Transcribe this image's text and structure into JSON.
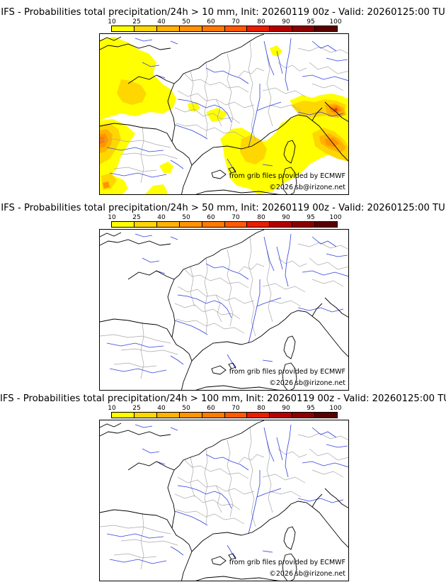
{
  "panels": [
    {
      "title": "IFS - Probabilities total precipitation/24h > 10 mm, Init: 20260119 00z - Valid: 20260125:00 TU",
      "has_precip": true
    },
    {
      "title": "IFS - Probabilities total precipitation/24h > 50 mm, Init: 20260119 00z - Valid: 20260125:00 TU",
      "has_precip": false
    },
    {
      "title": "IFS - Probabilities total precipitation/24h > 100 mm, Init: 20260119 00z - Valid: 20260125:00 TU",
      "has_precip": false
    }
  ],
  "legend": {
    "ticks": [
      "10",
      "25",
      "40",
      "50",
      "60",
      "70",
      "80",
      "90",
      "95",
      "100"
    ],
    "colors": [
      "#ffff00",
      "#ffd700",
      "#ffb300",
      "#ff9400",
      "#ff7a00",
      "#ff5a00",
      "#e81e00",
      "#b40000",
      "#8c0000",
      "#5a0000"
    ]
  },
  "credits": {
    "source": "from grib files provided by ECMWF",
    "copyright": "©2026 sb@irizone.net"
  },
  "colors": {
    "coast": "#000000",
    "rivers": "#3040e0",
    "borders": "#a8a8a8"
  }
}
